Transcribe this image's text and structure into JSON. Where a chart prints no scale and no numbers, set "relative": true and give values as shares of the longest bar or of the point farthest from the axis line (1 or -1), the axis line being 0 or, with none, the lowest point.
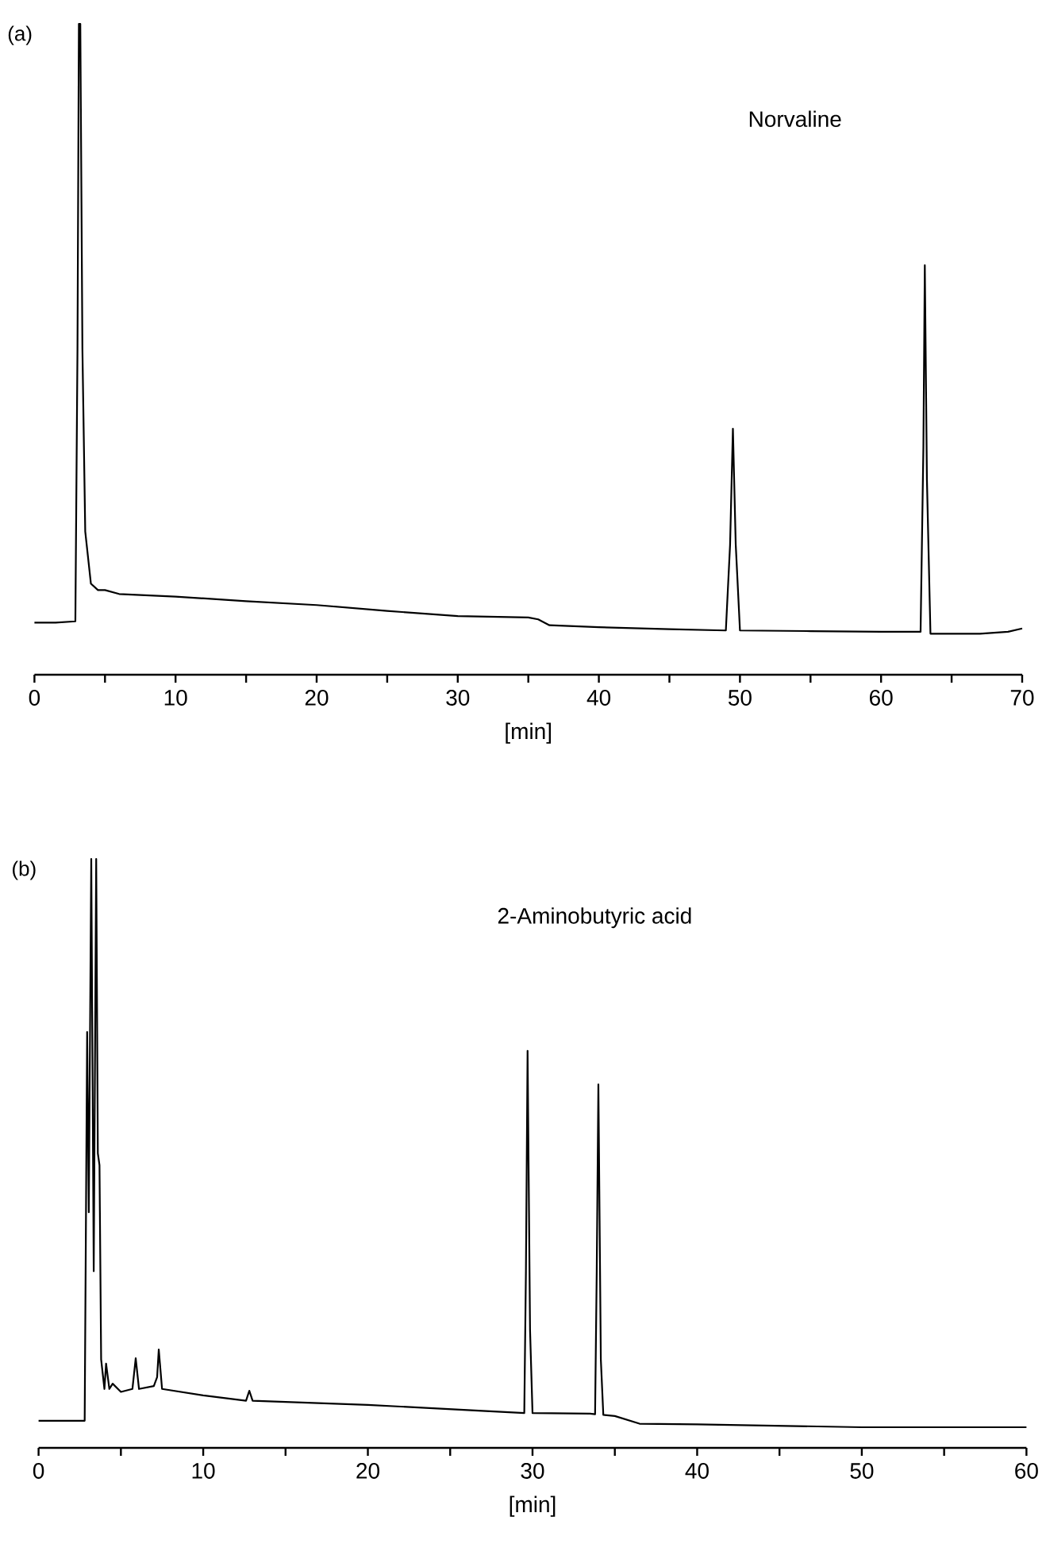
{
  "chart_data": [
    {
      "type": "line",
      "title": "(a)",
      "xlabel": "[min]",
      "annotations": [
        "Norvaline"
      ],
      "relative": true,
      "color": "#000000",
      "tick_labels": "x",
      "xlim": [
        0,
        70
      ],
      "xticks": [
        0,
        {
          "value": 5,
          "label": null
        },
        10,
        {
          "value": 15,
          "label": null
        },
        20,
        {
          "value": 25,
          "label": null
        },
        30,
        {
          "value": 35,
          "label": null
        },
        40,
        {
          "value": 45,
          "label": null
        },
        50,
        {
          "value": 55,
          "label": null
        },
        60,
        {
          "value": 65,
          "label": null
        },
        70
      ],
      "x": [
        0,
        1.5,
        2.9,
        3.05,
        3.15,
        3.25,
        3.4,
        3.6,
        4.0,
        4.5,
        5,
        6,
        10,
        15,
        20,
        25,
        30,
        35,
        35.7,
        36.5,
        40,
        45,
        49,
        49.3,
        49.5,
        49.7,
        50,
        55,
        60,
        62.8,
        63.0,
        63.1,
        63.25,
        63.5,
        67,
        69,
        70
      ],
      "values": [
        0.08,
        0.08,
        0.082,
        0.5,
        1.0,
        1.0,
        0.5,
        0.22,
        0.14,
        0.13,
        0.13,
        0.124,
        0.12,
        0.113,
        0.107,
        0.098,
        0.09,
        0.088,
        0.085,
        0.076,
        0.073,
        0.07,
        0.068,
        0.2,
        0.378,
        0.2,
        0.068,
        0.067,
        0.066,
        0.066,
        0.35,
        0.629,
        0.3,
        0.063,
        0.063,
        0.066,
        0.071
      ]
    },
    {
      "type": "line",
      "title": "(b)",
      "xlabel": "[min]",
      "annotations": [
        "2-Aminobutyric acid"
      ],
      "relative": true,
      "color": "#000000",
      "tick_labels": "x",
      "xlim": [
        0,
        60
      ],
      "xticks": [
        0,
        {
          "value": 5,
          "label": null
        },
        10,
        {
          "value": 15,
          "label": null
        },
        20,
        {
          "value": 25,
          "label": null
        },
        30,
        {
          "value": 35,
          "label": null
        },
        40,
        {
          "value": 45,
          "label": null
        },
        50,
        {
          "value": 55,
          "label": null
        },
        60
      ],
      "x": [
        0,
        2.8,
        2.95,
        3.05,
        3.2,
        3.35,
        3.5,
        3.6,
        3.7,
        3.8,
        4.0,
        4.1,
        4.3,
        4.5,
        5,
        5.7,
        5.9,
        6.1,
        7,
        7.2,
        7.3,
        7.5,
        10,
        12.6,
        12.8,
        13,
        20,
        29.5,
        29.6,
        29.7,
        29.85,
        30.0,
        33.5,
        33.8,
        33.9,
        34.0,
        34.15,
        34.3,
        35,
        36.5,
        40,
        50,
        60
      ],
      "values": [
        0.046,
        0.046,
        0.706,
        0.4,
        1.0,
        0.3,
        1.0,
        0.5,
        0.48,
        0.15,
        0.1,
        0.143,
        0.1,
        0.109,
        0.095,
        0.1,
        0.152,
        0.1,
        0.105,
        0.12,
        0.167,
        0.1,
        0.089,
        0.08,
        0.097,
        0.08,
        0.073,
        0.059,
        0.3,
        0.674,
        0.2,
        0.059,
        0.058,
        0.057,
        0.3,
        0.617,
        0.15,
        0.056,
        0.054,
        0.041,
        0.04,
        0.035,
        0.035
      ]
    }
  ]
}
